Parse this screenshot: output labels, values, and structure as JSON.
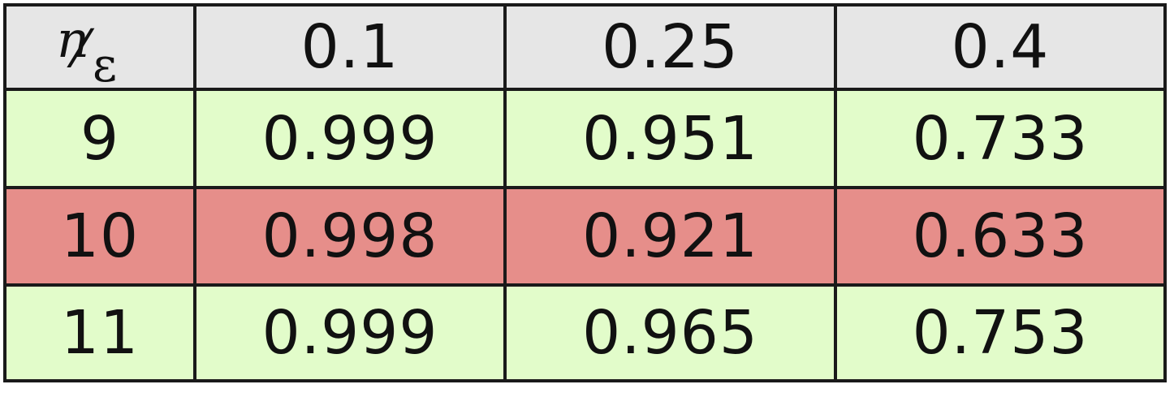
{
  "table": {
    "corner": {
      "top": "n",
      "separator": "⁄",
      "bottom": "ε"
    },
    "columns": [
      "0.1",
      "0.25",
      "0.4"
    ],
    "rows": [
      {
        "n": "9",
        "values": [
          "0.999",
          "0.951",
          "0.733"
        ],
        "highlight": "green"
      },
      {
        "n": "10",
        "values": [
          "0.998",
          "0.921",
          "0.633"
        ],
        "highlight": "red"
      },
      {
        "n": "11",
        "values": [
          "0.999",
          "0.965",
          "0.753"
        ],
        "highlight": "green"
      }
    ]
  },
  "colors": {
    "header": "#e6e6e6",
    "green": "#e2fcca",
    "red": "#e68e8a",
    "border": "#1a1a1a"
  }
}
